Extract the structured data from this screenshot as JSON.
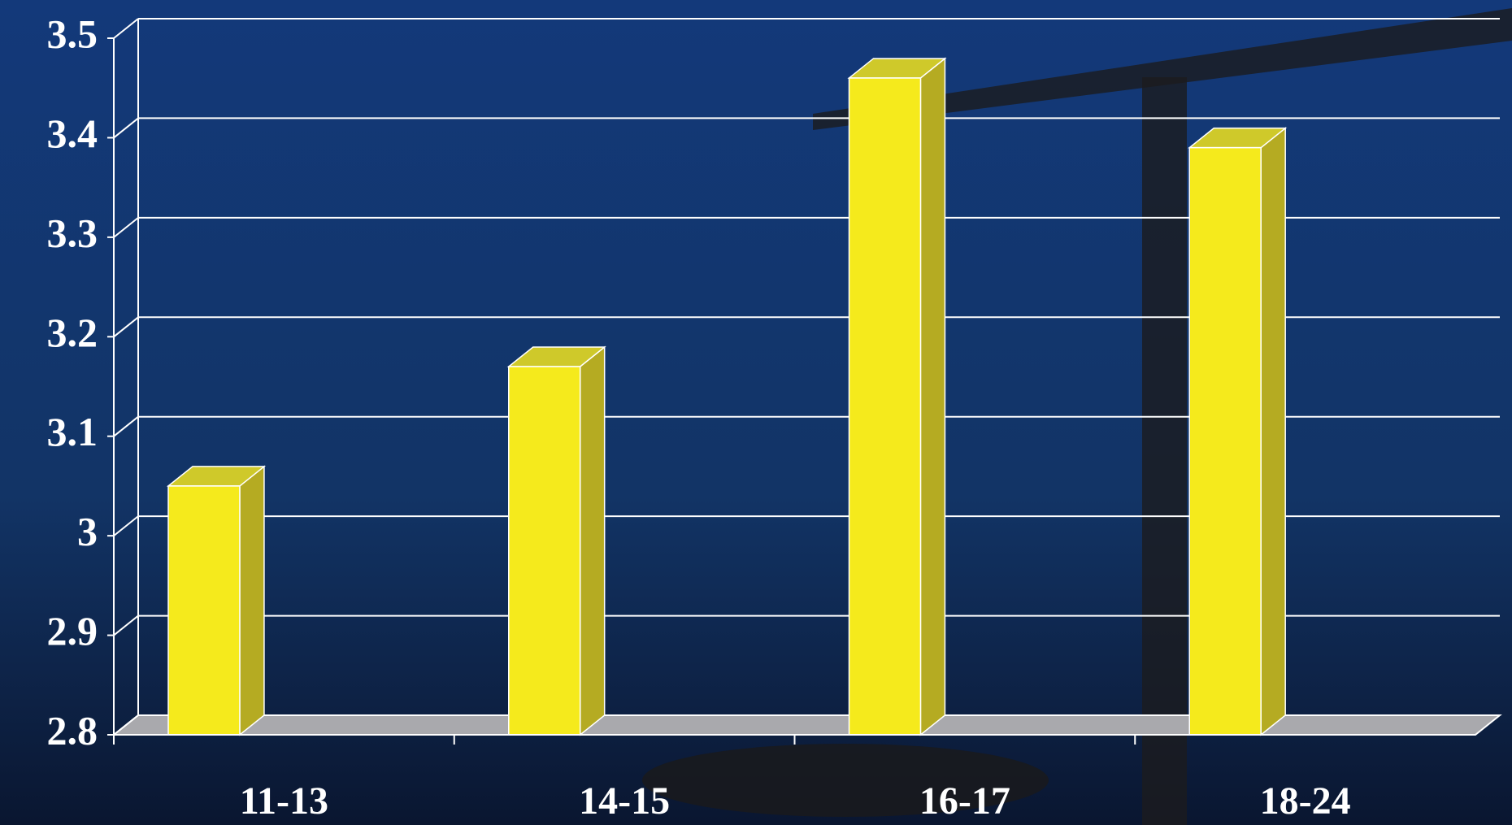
{
  "chart_data": {
    "type": "bar3d",
    "categories": [
      "11-13",
      "14-15",
      "16-17",
      "18-24"
    ],
    "values": [
      3.05,
      3.17,
      3.46,
      3.39
    ],
    "color": "#f5ea1c",
    "ylim": [
      2.8,
      3.5
    ],
    "yticks": [
      2.8,
      2.9,
      3,
      3.1,
      3.2,
      3.3,
      3.4,
      3.5
    ],
    "grid": true
  }
}
